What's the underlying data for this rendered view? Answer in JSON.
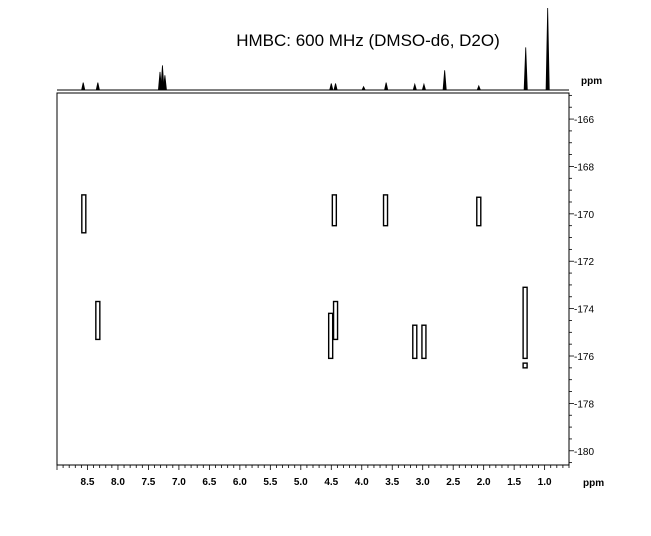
{
  "chart_data": {
    "type": "scatter",
    "title": "HMBC:  600 MHz (DMSO-d6, D2O)",
    "xlabel": "ppm",
    "ylabel": "ppm",
    "xlim": [
      9.0,
      0.6
    ],
    "ylim": [
      164.9,
      180.6
    ],
    "x_ticks": [
      "8.5",
      "8.0",
      "7.5",
      "7.0",
      "6.5",
      "6.0",
      "5.5",
      "5.0",
      "4.5",
      "4.0",
      "3.5",
      "3.0",
      "2.5",
      "2.0",
      "1.5",
      "1.0"
    ],
    "y_ticks": [
      "166",
      "168",
      "170",
      "172",
      "174",
      "176",
      "178",
      "180"
    ],
    "proton_spectrum_peaks": [
      {
        "x": 8.57,
        "h": 0.09
      },
      {
        "x": 8.33,
        "h": 0.09
      },
      {
        "x": 7.31,
        "h": 0.22
      },
      {
        "x": 7.27,
        "h": 0.3
      },
      {
        "x": 7.23,
        "h": 0.18
      },
      {
        "x": 4.5,
        "h": 0.08
      },
      {
        "x": 4.43,
        "h": 0.08
      },
      {
        "x": 3.97,
        "h": 0.04
      },
      {
        "x": 3.6,
        "h": 0.09
      },
      {
        "x": 3.13,
        "h": 0.07
      },
      {
        "x": 2.98,
        "h": 0.07
      },
      {
        "x": 2.64,
        "h": 0.24
      },
      {
        "x": 2.08,
        "h": 0.05
      },
      {
        "x": 1.31,
        "h": 0.52
      },
      {
        "x": 0.95,
        "h": 1.0
      }
    ],
    "cross_peaks": [
      {
        "x": 8.56,
        "y1": 169.2,
        "y2": 170.8
      },
      {
        "x": 8.33,
        "y1": 173.7,
        "y2": 175.3
      },
      {
        "x": 4.45,
        "y1": 169.2,
        "y2": 170.5
      },
      {
        "x": 3.61,
        "y1": 169.2,
        "y2": 170.5
      },
      {
        "x": 2.08,
        "y1": 169.3,
        "y2": 170.5
      },
      {
        "x": 4.51,
        "y1": 174.2,
        "y2": 176.1
      },
      {
        "x": 4.43,
        "y1": 173.7,
        "y2": 175.3
      },
      {
        "x": 3.13,
        "y1": 174.7,
        "y2": 176.1
      },
      {
        "x": 2.98,
        "y1": 174.7,
        "y2": 176.1
      },
      {
        "x": 1.32,
        "y1": 173.1,
        "y2": 176.1
      },
      {
        "x": 1.32,
        "y1": 176.3,
        "y2": 176.5
      }
    ]
  }
}
